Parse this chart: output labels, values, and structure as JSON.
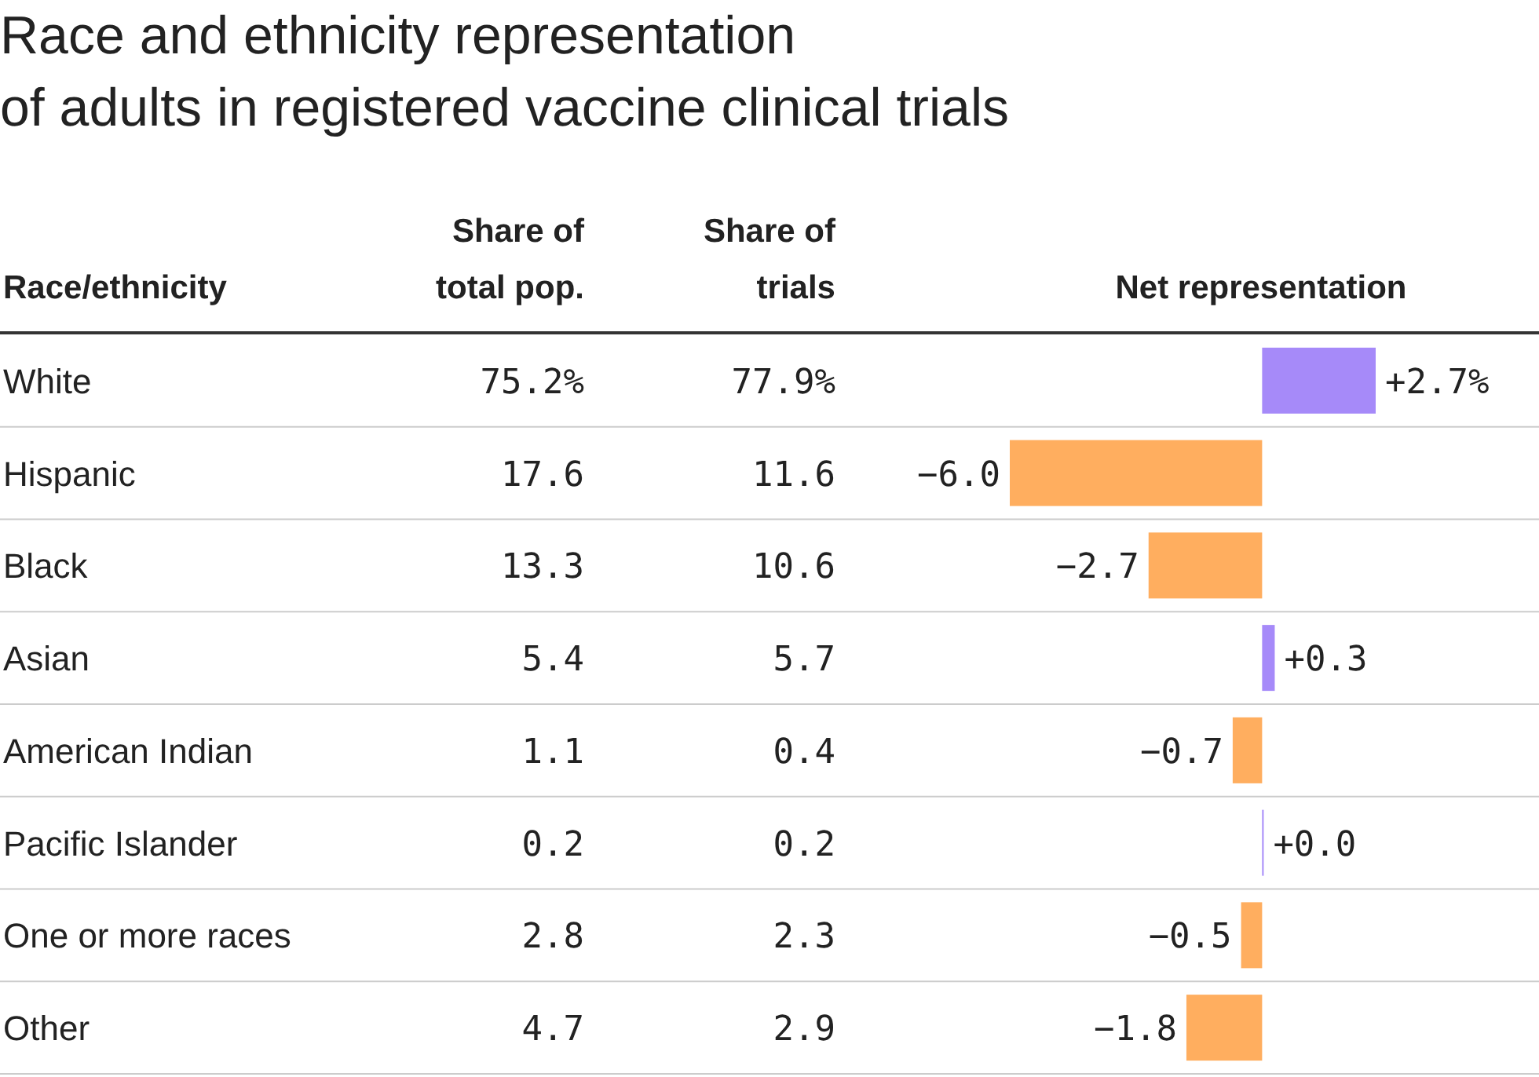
{
  "chart_data": {
    "type": "bar",
    "orientation": "horizontal",
    "title": "Race and ethnicity representation\nof adults in registered vaccine clinical trials",
    "ylabel": "Race/ethnicity",
    "xlabel": "Net representation",
    "categories": [
      "White",
      "Hispanic",
      "Black",
      "Asian",
      "American Indian",
      "Pacific Islander",
      "One or more races",
      "Other"
    ],
    "series": [
      {
        "values": [
          2.7,
          -6.0,
          -2.7,
          0.3,
          -0.7,
          0.0,
          -0.5,
          -1.8
        ],
        "colors": [
          "#a68af9",
          "#ffae5f",
          "#ffae5f",
          "#a68af9",
          "#ffae5f",
          "#a68af9",
          "#ffae5f",
          "#ffae5f"
        ],
        "value_labels": [
          "+2.7%",
          "−6.0",
          "−2.7",
          "+0.3",
          "−0.7",
          "+0.0",
          "−0.5",
          "−1.8"
        ]
      }
    ],
    "annotations": [
      "Share of\ntotal pop.",
      "Share of\ntrials",
      "75.2%",
      "77.9%",
      "17.6",
      "11.6",
      "13.3",
      "10.6",
      "5.4",
      "5.7",
      "1.1",
      "0.4",
      "0.2",
      "0.2",
      "2.8",
      "2.3",
      "4.7",
      "2.9"
    ],
    "grid": "y"
  }
}
